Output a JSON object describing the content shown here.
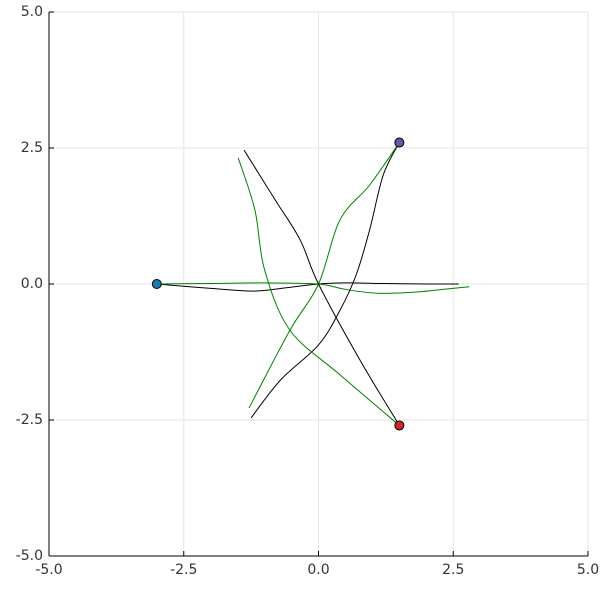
{
  "chart_data": {
    "type": "line",
    "xlim": [
      -5,
      5
    ],
    "ylim": [
      -5,
      5
    ],
    "xticks": [
      {
        "value": -5,
        "label": "-5.0"
      },
      {
        "value": -2.5,
        "label": "-2.5"
      },
      {
        "value": 0,
        "label": "0.0"
      },
      {
        "value": 2.5,
        "label": "2.5"
      },
      {
        "value": 5,
        "label": "5.0"
      }
    ],
    "yticks": [
      {
        "value": -5,
        "label": "-5.0"
      },
      {
        "value": -2.5,
        "label": "-2.5"
      },
      {
        "value": 0,
        "label": "0.0"
      },
      {
        "value": 2.5,
        "label": "2.5"
      },
      {
        "value": 5,
        "label": "5.0"
      }
    ],
    "grid": true,
    "series": [
      {
        "color": "#000000",
        "x": [
          -3,
          -2,
          -1.2,
          -0.6,
          0,
          0.5,
          1.2,
          2,
          2.6
        ],
        "values": [
          0,
          -0.08,
          -0.13,
          -0.07,
          0,
          0.02,
          0.01,
          0,
          0
        ]
      },
      {
        "color": "#008000",
        "x": [
          -3,
          -2,
          -1,
          0,
          0.5,
          1.1,
          1.8,
          2.4,
          2.8
        ],
        "values": [
          0,
          0.01,
          0.02,
          0,
          -0.1,
          -0.17,
          -0.15,
          -0.09,
          -0.05
        ]
      },
      {
        "color": "#000000",
        "x": [
          1.5,
          1.2,
          0.95,
          0.7,
          0.4,
          0,
          -0.7,
          -1.25
        ],
        "values": [
          2.6,
          2.0,
          1.0,
          0.17,
          -0.48,
          -1.12,
          -1.76,
          -2.46
        ]
      },
      {
        "color": "#008000",
        "x": [
          1.5,
          0.95,
          0.4,
          0,
          -0.53,
          -1.29
        ],
        "values": [
          2.6,
          1.82,
          1.18,
          0,
          -0.85,
          -2.28
        ]
      },
      {
        "color": "#000000",
        "x": [
          1.5,
          0.77,
          0,
          -0.34,
          -0.8,
          -1.38
        ],
        "values": [
          -2.6,
          -1.4,
          0,
          0.81,
          1.54,
          2.46
        ]
      },
      {
        "color": "#008000",
        "x": [
          1.5,
          0.4,
          -0.53,
          -1.0,
          -1.18,
          -1.49
        ],
        "values": [
          -2.6,
          -1.67,
          -0.85,
          0.26,
          1.36,
          2.32
        ]
      }
    ],
    "points": {
      "x": [
        -3,
        1.5,
        1.5
      ],
      "y": [
        0,
        2.6,
        -2.6
      ],
      "colors": [
        "#1f78b4",
        "#7051a8",
        "#d62728"
      ]
    }
  }
}
